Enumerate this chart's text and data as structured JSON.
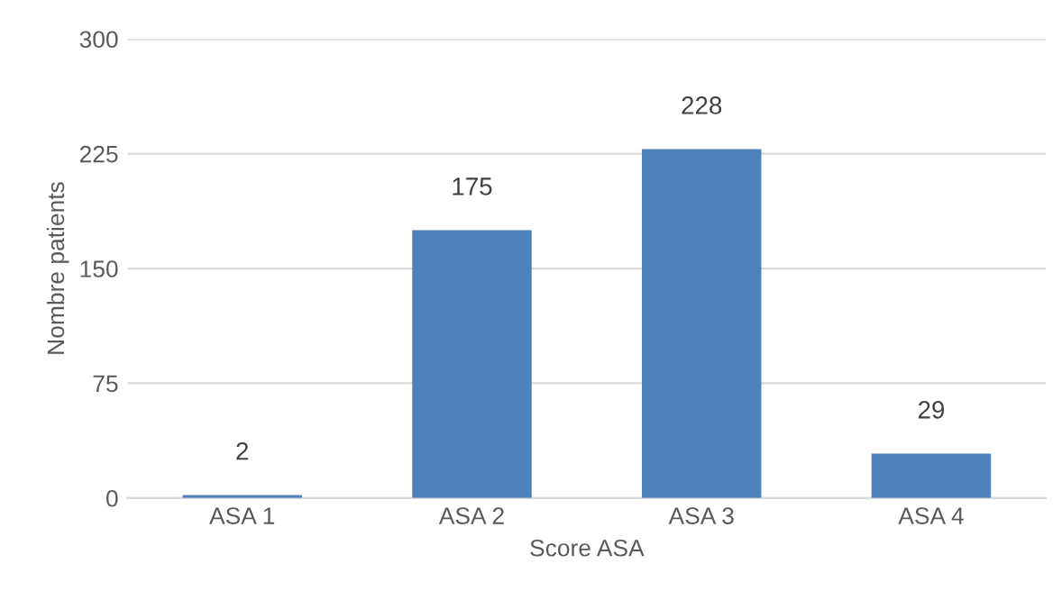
{
  "chart_data": {
    "type": "bar",
    "xlabel": "Score ASA",
    "ylabel": "Nombre patients",
    "categories": [
      "ASA 1",
      "ASA 2",
      "ASA 3",
      "ASA 4"
    ],
    "values": [
      2,
      175,
      228,
      29
    ],
    "color": "#4f81bd",
    "ylim": [
      0,
      300
    ],
    "yticks": [
      0,
      75,
      150,
      225,
      300
    ],
    "grid": "y",
    "data_labels": true
  }
}
